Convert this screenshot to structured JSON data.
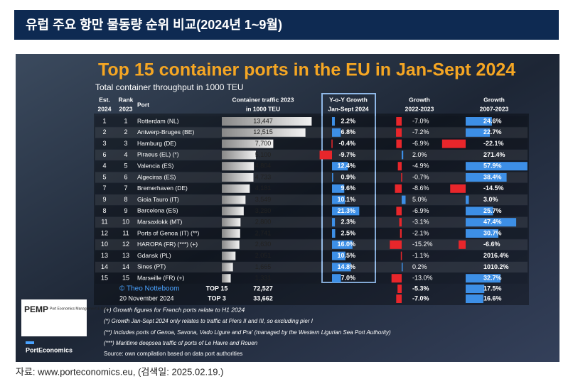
{
  "page_header": {
    "title": "유럽 주요 항만 물동량 순위 비교(2024년 1~9월)"
  },
  "figure": {
    "title": "Top 15 container ports in the EU in Jan-Sept 2024",
    "subtitle": "Total container throughput in 1000 TEU",
    "columns": [
      [
        "Est.",
        "2024"
      ],
      [
        "Rank",
        "2023"
      ],
      [
        "Port"
      ],
      [
        "Container traffic 2023",
        "in 1000 TEU"
      ],
      [
        "Y-o-Y Growth",
        "Jan-Sept 2024"
      ],
      [
        "Growth",
        "2022-2023"
      ],
      [
        "Growth",
        "2007-2023"
      ]
    ],
    "rows": [
      [
        "1",
        "1",
        "Rotterdam (NL)",
        "13,447",
        "2.2%",
        "-7.0%",
        "24.6%"
      ],
      [
        "2",
        "2",
        "Antwerp-Bruges (BE)",
        "12,515",
        "6.8%",
        "-7.2%",
        "22.7%"
      ],
      [
        "3",
        "3",
        "Hamburg (DE)",
        "7,700",
        "-0.4%",
        "-6.9%",
        "-22.1%"
      ],
      [
        "6",
        "4",
        "Piraeus (EL) (*)",
        "5,100",
        "-9.7%",
        "2.0%",
        "271.4%"
      ],
      [
        "4",
        "5",
        "Valencia (ES)",
        "4,804",
        "12.4%",
        "-4.9%",
        "57.9%"
      ],
      [
        "5",
        "6",
        "Algeciras (ES)",
        "4,733",
        "0.9%",
        "-0.7%",
        "38.4%"
      ],
      [
        "7",
        "7",
        "Bremerhaven (DE)",
        "4,181",
        "9.6%",
        "-8.6%",
        "-14.5%"
      ],
      [
        "9",
        "8",
        "Gioia Tauro (IT)",
        "3,549",
        "10.1%",
        "5.0%",
        "3.0%"
      ],
      [
        "8",
        "9",
        "Barcelona (ES)",
        "3,280",
        "21.3%",
        "-6.9%",
        "25.7%"
      ],
      [
        "11",
        "10",
        "Marsaxlokk (MT)",
        "2,800",
        "2.3%",
        "-3.1%",
        "47.4%"
      ],
      [
        "12",
        "11",
        "Ports of Genoa (IT) (**)",
        "2,741",
        "2.5%",
        "-2.1%",
        "30.7%"
      ],
      [
        "10",
        "12",
        "HAROPA (FR) (***) (+)",
        "2,630",
        "16.0%",
        "-15.2%",
        "-6.6%"
      ],
      [
        "13",
        "13",
        "Gdansk (PL)",
        "2,051",
        "10.5%",
        "-1.1%",
        "2016.4%"
      ],
      [
        "14",
        "14",
        "Sines (PT)",
        "1,665",
        "14.8%",
        "0.2%",
        "1010.2%"
      ],
      [
        "15",
        "15",
        "Marseille (FR) (+)",
        "1,331",
        "7.0%",
        "-13.0%",
        "32.7%"
      ]
    ],
    "totals": [
      {
        "label": "TOP 15",
        "traffic": "72,527",
        "growth_2022_2023": "-5.3%",
        "growth_2007_2023": "17.5%"
      },
      {
        "label": "TOP 3",
        "traffic": "33,662",
        "growth_2022_2023": "-7.0%",
        "growth_2007_2023": "16.6%"
      }
    ],
    "credit": [
      "© Theo Notteboom",
      "20 November 2024"
    ],
    "notes": [
      "(+) Growth figures for French ports relate to H1 2024",
      "(*) Growth Jan-Sept 2024 only relates to traffic at Piers II and III, so excluding pier I",
      "(**) Includes ports of Genoa, Savona, Vado Ligure and Pra' (managed by the Western Ligurian Sea Port Authority)",
      "(***) Maritime deepsea traffic of ports of Le Havre and Rouen"
    ],
    "source": "Source: own compilation based on data port authorities",
    "logo": {
      "mark": "PEMP",
      "name": "Port Economics Management & Policy",
      "brand": "PortEconomics"
    }
  },
  "footer": {
    "source": "자료: www.porteconomics.eu, (검색일: 2025.02.19.)"
  }
}
